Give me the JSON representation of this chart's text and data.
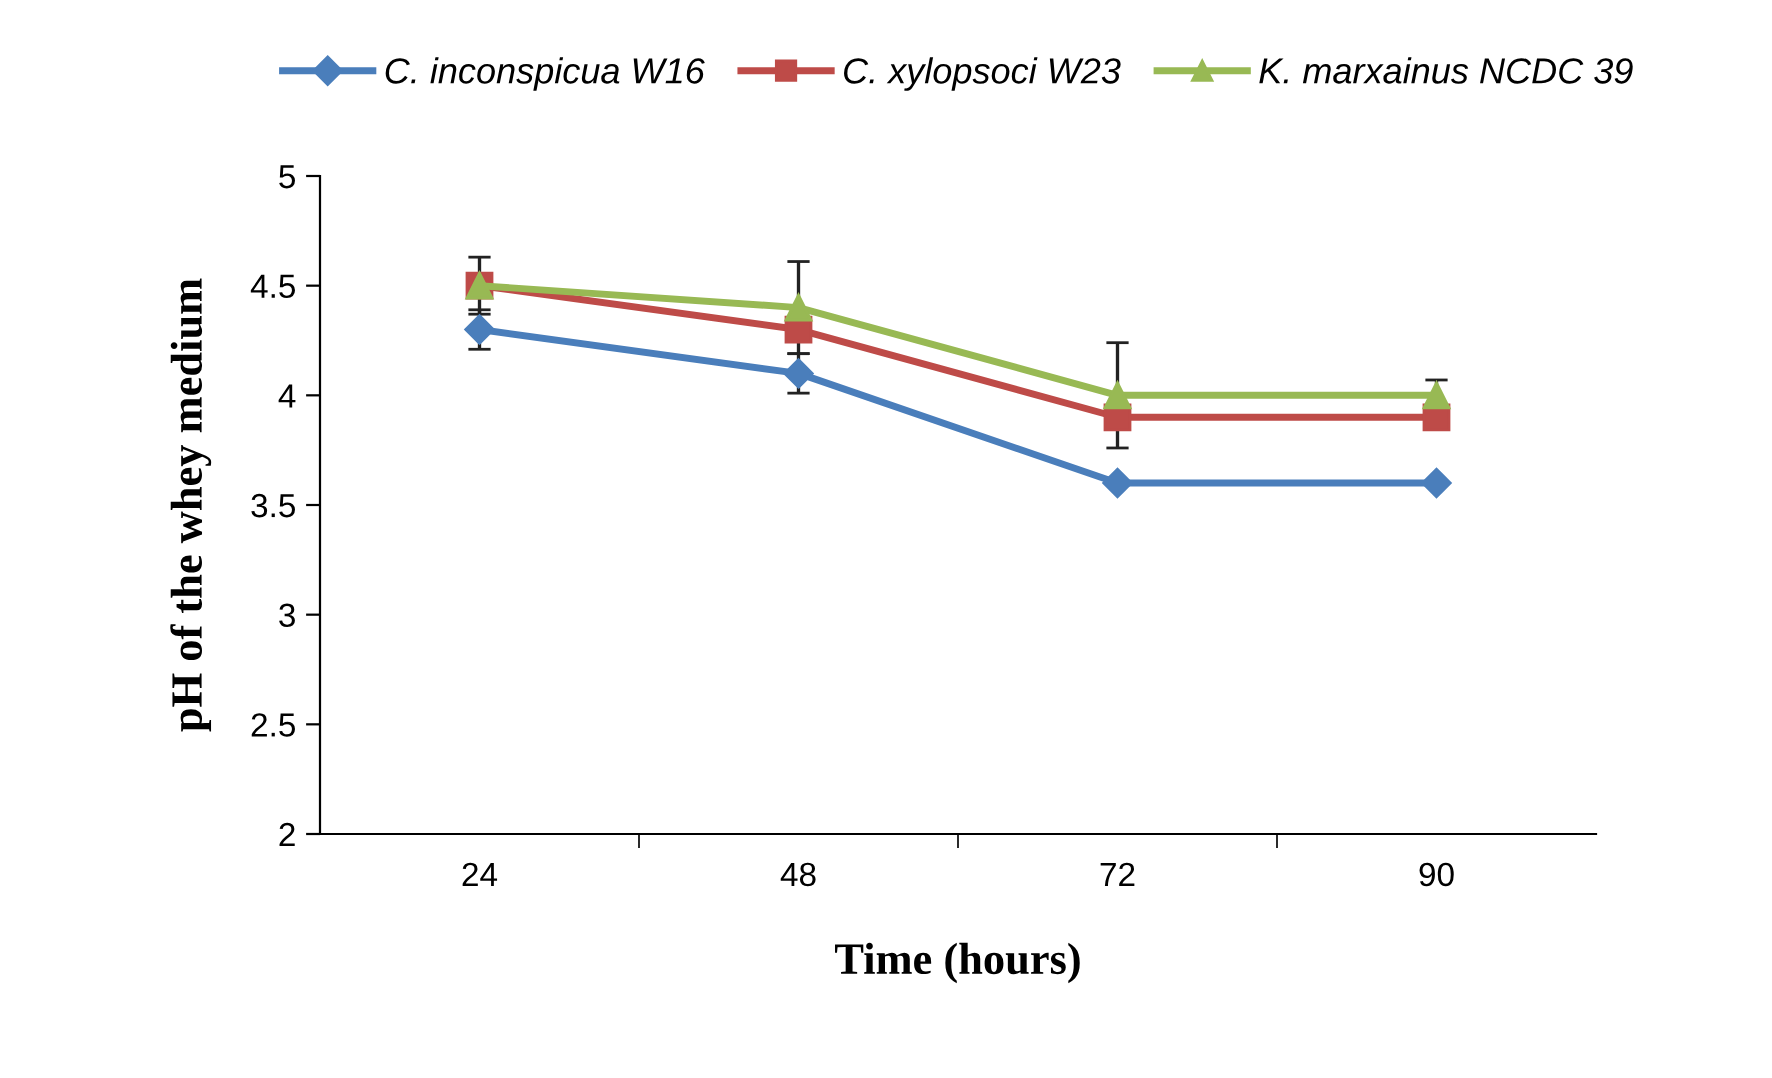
{
  "chart_data": {
    "type": "line",
    "xlabel": "Time (hours)",
    "ylabel": "pH of the whey medium",
    "categories": [
      "24",
      "48",
      "72",
      "90"
    ],
    "ylim": [
      2,
      5
    ],
    "yticks": [
      2,
      {
        "value": 2.5,
        "label": "2.5"
      },
      3,
      {
        "value": 3.5,
        "label": "3.5"
      },
      4,
      {
        "value": 4.5,
        "label": "4.5"
      },
      5
    ],
    "grid": false,
    "legend": "top",
    "line_style": "solid",
    "series": [
      {
        "name": "C. inconspicua W16",
        "color": "#4a7ebb",
        "marker": "diamond",
        "values": [
          4.3,
          4.1,
          3.6,
          3.6
        ],
        "errors": [
          0.09,
          0.09,
          null,
          null
        ]
      },
      {
        "name": "C. xylopsoci W23",
        "color": "#be4b48",
        "marker": "square",
        "values": [
          4.5,
          4.3,
          3.9,
          3.9
        ]
      },
      {
        "name": "K. marxainus NCDC 39",
        "color": "#98b954",
        "marker": "triangle",
        "values": [
          4.5,
          4.4,
          4.0,
          4.0
        ],
        "errors": [
          0.13,
          0.21,
          0.24,
          0.07
        ]
      }
    ]
  }
}
